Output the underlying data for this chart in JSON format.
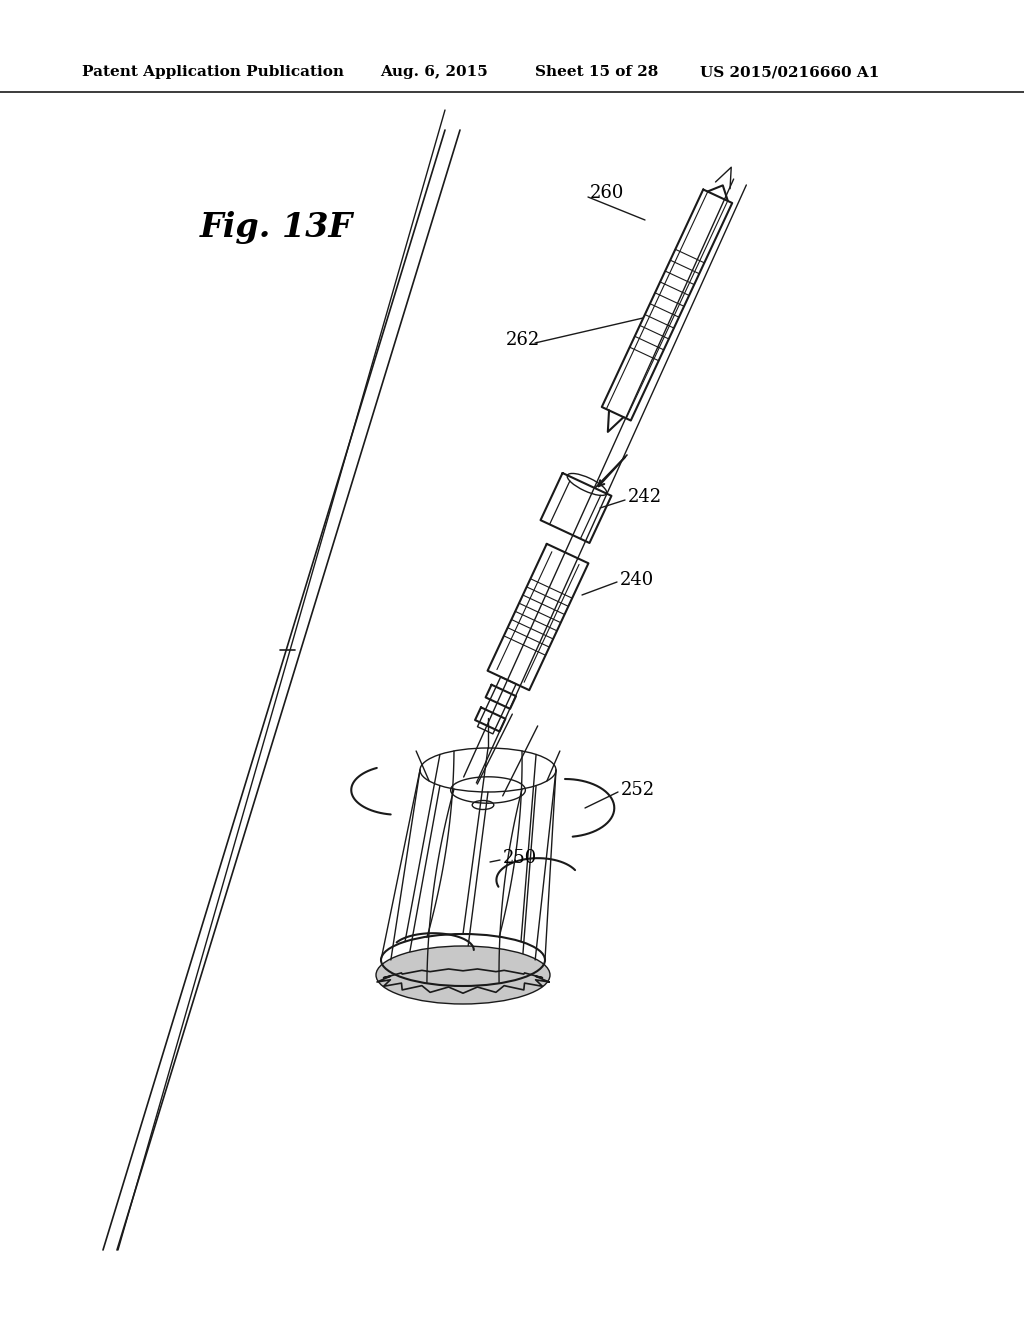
{
  "bg_color": "#ffffff",
  "header_text": "Patent Application Publication",
  "header_date": "Aug. 6, 2015",
  "header_sheet": "Sheet 15 of 28",
  "header_patent": "US 2015/0216660 A1",
  "fig_label": "Fig. 13F",
  "line_color": "#1a1a1a",
  "text_color": "#000000",
  "fig_width": 10.24,
  "fig_height": 13.2,
  "dpi": 100
}
